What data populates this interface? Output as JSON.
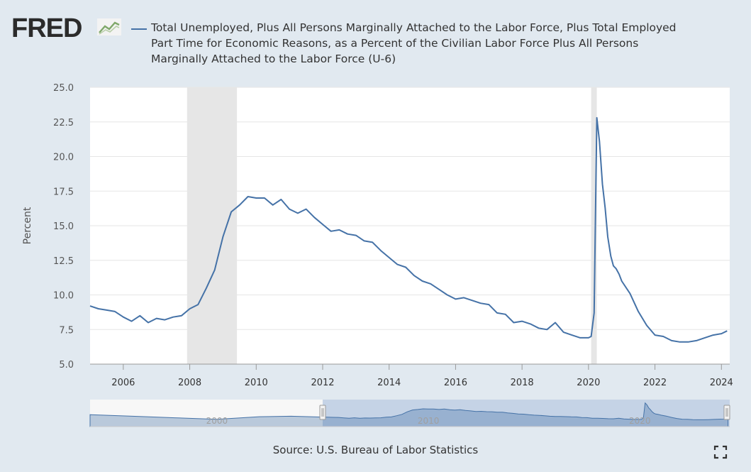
{
  "header": {
    "logo_text": "FRED",
    "logo_icon": "trend-graph-icon",
    "legend_text": "Total Unemployed, Plus All Persons Marginally Attached to the Labor Force, Plus Total Employed Part Time for Economic Reasons, as a Percent of the Civilian Labor Force Plus All Persons Marginally Attached to the Labor Force (U-6)"
  },
  "footer": {
    "source": "Source: U.S. Bureau of Labor Statistics",
    "fullscreen_icon": "fullscreen-icon"
  },
  "colors": {
    "series": "#4572a7",
    "recession": "#e6e6e6",
    "plot_bg": "#ffffff",
    "frame_bg": "#e1e9f0",
    "navigator_selected": "#b8c9e1"
  },
  "chart_data": {
    "type": "line",
    "title": "Total Unemployed, Plus All Persons Marginally Attached to the Labor Force, Plus Total Employed Part Time for Economic Reasons, as a Percent of the Civilian Labor Force Plus All Persons Marginally Attached to the Labor Force (U-6)",
    "xlabel": "",
    "ylabel": "Percent",
    "ylim": [
      5.0,
      25.0
    ],
    "xlim": [
      2005.0,
      2024.25
    ],
    "yticks": [
      "5.0",
      "7.5",
      "10.0",
      "12.5",
      "15.0",
      "17.5",
      "20.0",
      "22.5",
      "25.0"
    ],
    "xticks": [
      "2006",
      "2008",
      "2010",
      "2012",
      "2014",
      "2016",
      "2018",
      "2020",
      "2022",
      "2024"
    ],
    "grid": true,
    "recessions": [
      [
        2007.92,
        2009.42
      ],
      [
        2020.08,
        2020.25
      ]
    ],
    "series": [
      {
        "name": "U-6",
        "x": [
          2005.0,
          2005.25,
          2005.5,
          2005.75,
          2006.0,
          2006.25,
          2006.5,
          2006.75,
          2007.0,
          2007.25,
          2007.5,
          2007.75,
          2008.0,
          2008.25,
          2008.5,
          2008.75,
          2009.0,
          2009.25,
          2009.5,
          2009.75,
          2010.0,
          2010.25,
          2010.5,
          2010.75,
          2011.0,
          2011.25,
          2011.5,
          2011.75,
          2012.0,
          2012.25,
          2012.5,
          2012.75,
          2013.0,
          2013.25,
          2013.5,
          2013.75,
          2014.0,
          2014.25,
          2014.5,
          2014.75,
          2015.0,
          2015.25,
          2015.5,
          2015.75,
          2016.0,
          2016.25,
          2016.5,
          2016.75,
          2017.0,
          2017.25,
          2017.5,
          2017.75,
          2018.0,
          2018.25,
          2018.5,
          2018.75,
          2019.0,
          2019.25,
          2019.5,
          2019.75,
          2020.0,
          2020.08,
          2020.17,
          2020.25,
          2020.33,
          2020.42,
          2020.5,
          2020.58,
          2020.67,
          2020.75,
          2020.83,
          2020.92,
          2021.0,
          2021.25,
          2021.5,
          2021.75,
          2022.0,
          2022.25,
          2022.5,
          2022.75,
          2023.0,
          2023.25,
          2023.5,
          2023.75,
          2024.0,
          2024.17
        ],
        "values": [
          9.2,
          9.0,
          8.9,
          8.8,
          8.4,
          8.1,
          8.5,
          8.0,
          8.3,
          8.2,
          8.4,
          8.5,
          9.0,
          9.3,
          10.5,
          11.8,
          14.2,
          16.0,
          16.5,
          17.1,
          17.0,
          17.0,
          16.5,
          16.9,
          16.2,
          15.9,
          16.2,
          15.6,
          15.1,
          14.6,
          14.7,
          14.4,
          14.3,
          13.9,
          13.8,
          13.2,
          12.7,
          12.2,
          12.0,
          11.4,
          11.0,
          10.8,
          10.4,
          10.0,
          9.7,
          9.8,
          9.6,
          9.4,
          9.3,
          8.7,
          8.6,
          8.0,
          8.1,
          7.9,
          7.6,
          7.5,
          8.0,
          7.3,
          7.1,
          6.9,
          6.9,
          7.0,
          8.7,
          22.8,
          21.1,
          18.0,
          16.3,
          14.2,
          12.8,
          12.1,
          11.9,
          11.5,
          11.0,
          10.1,
          8.8,
          7.8,
          7.1,
          7.0,
          6.7,
          6.6,
          6.6,
          6.7,
          6.9,
          7.1,
          7.2,
          7.4
        ]
      }
    ],
    "navigator": {
      "xticks": [
        "2000",
        "2010",
        "2020"
      ],
      "range": [
        1994.0,
        2024.25
      ],
      "selected": [
        2005.0,
        2024.25
      ]
    }
  }
}
